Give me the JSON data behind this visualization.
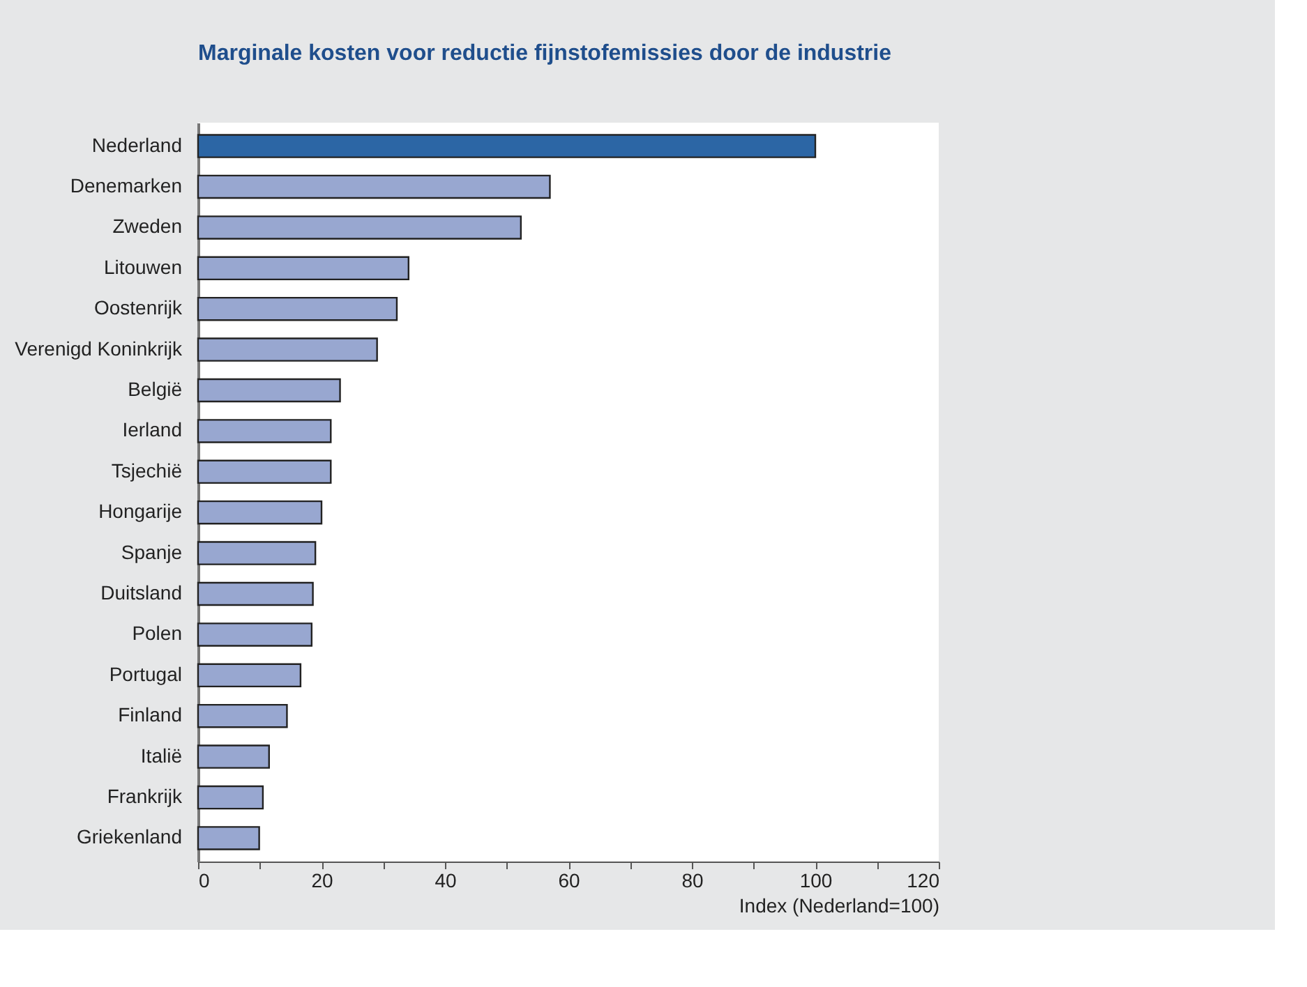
{
  "chart_data": {
    "type": "bar",
    "orientation": "horizontal",
    "title": "Marginale kosten voor reductie fijnstofemissies door de industrie",
    "xlabel": "Index (Nederland=100)",
    "categories": [
      "Nederland",
      "Denemarken",
      "Zweden",
      "Litouwen",
      "Oostenrijk",
      "Verenigd Koninkrijk",
      "België",
      "Ierland",
      "Tsjechië",
      "Hongarije",
      "Spanje",
      "Duitsland",
      "Polen",
      "Portugal",
      "Finland",
      "Italië",
      "Frankrijk",
      "Griekenland"
    ],
    "values": [
      100,
      57,
      52.3,
      34.1,
      32.2,
      29,
      23,
      21.5,
      21.5,
      20,
      19,
      18.6,
      18.4,
      16.6,
      14.4,
      11.5,
      10.5,
      9.9
    ],
    "colors": [
      "#2c66a5",
      "#98a7d0",
      "#98a7d0",
      "#98a7d0",
      "#98a7d0",
      "#98a7d0",
      "#98a7d0",
      "#98a7d0",
      "#98a7d0",
      "#98a7d0",
      "#98a7d0",
      "#98a7d0",
      "#98a7d0",
      "#98a7d0",
      "#98a7d0",
      "#98a7d0",
      "#98a7d0",
      "#98a7d0"
    ],
    "xlim": [
      0,
      120
    ],
    "xticks": [
      0,
      {
        "value": 10,
        "label": null
      },
      20,
      {
        "value": 30,
        "label": null
      },
      40,
      {
        "value": 50,
        "label": null
      },
      60,
      {
        "value": 70,
        "label": null
      },
      80,
      {
        "value": 90,
        "label": null
      },
      100,
      {
        "value": 110,
        "label": null
      },
      120
    ],
    "grid": false
  }
}
